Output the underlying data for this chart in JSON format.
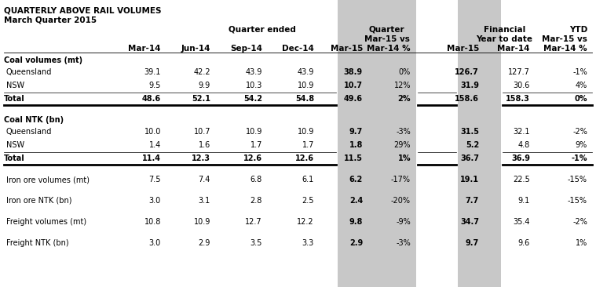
{
  "title1": "QUARTERLY ABOVE RAIL VOLUMES",
  "title2": "March Quarter 2015",
  "rows": [
    {
      "label": "Coal volumes (mt)",
      "values": [
        "",
        "",
        "",
        "",
        "",
        "",
        "",
        "",
        "",
        ""
      ],
      "type": "section"
    },
    {
      "label": "Queensland",
      "values": [
        "39.1",
        "42.2",
        "43.9",
        "43.9",
        "38.9",
        "0%",
        "",
        "126.7",
        "127.7",
        "-1%"
      ],
      "type": "data"
    },
    {
      "label": "NSW",
      "values": [
        "9.5",
        "9.9",
        "10.3",
        "10.9",
        "10.7",
        "12%",
        "",
        "31.9",
        "30.6",
        "4%"
      ],
      "type": "data"
    },
    {
      "label": "Total",
      "values": [
        "48.6",
        "52.1",
        "54.2",
        "54.8",
        "49.6",
        "2%",
        "",
        "158.6",
        "158.3",
        "0%"
      ],
      "type": "total"
    },
    {
      "label": "",
      "values": [
        "",
        "",
        "",
        "",
        "",
        "",
        "",
        "",
        "",
        ""
      ],
      "type": "spacer"
    },
    {
      "label": "Coal NTK (bn)",
      "values": [
        "",
        "",
        "",
        "",
        "",
        "",
        "",
        "",
        "",
        ""
      ],
      "type": "section"
    },
    {
      "label": "Queensland",
      "values": [
        "10.0",
        "10.7",
        "10.9",
        "10.9",
        "9.7",
        "-3%",
        "",
        "31.5",
        "32.1",
        "-2%"
      ],
      "type": "data"
    },
    {
      "label": "NSW",
      "values": [
        "1.4",
        "1.6",
        "1.7",
        "1.7",
        "1.8",
        "29%",
        "",
        "5.2",
        "4.8",
        "9%"
      ],
      "type": "data"
    },
    {
      "label": "Total",
      "values": [
        "11.4",
        "12.3",
        "12.6",
        "12.6",
        "11.5",
        "1%",
        "",
        "36.7",
        "36.9",
        "-1%"
      ],
      "type": "total"
    },
    {
      "label": "",
      "values": [
        "",
        "",
        "",
        "",
        "",
        "",
        "",
        "",
        "",
        ""
      ],
      "type": "spacer"
    },
    {
      "label": "Iron ore volumes (mt)",
      "values": [
        "7.5",
        "7.4",
        "6.8",
        "6.1",
        "6.2",
        "-17%",
        "",
        "19.1",
        "22.5",
        "-15%"
      ],
      "type": "data"
    },
    {
      "label": "",
      "values": [
        "",
        "",
        "",
        "",
        "",
        "",
        "",
        "",
        "",
        ""
      ],
      "type": "spacer"
    },
    {
      "label": "Iron ore NTK (bn)",
      "values": [
        "3.0",
        "3.1",
        "2.8",
        "2.5",
        "2.4",
        "-20%",
        "",
        "7.7",
        "9.1",
        "-15%"
      ],
      "type": "data"
    },
    {
      "label": "",
      "values": [
        "",
        "",
        "",
        "",
        "",
        "",
        "",
        "",
        "",
        ""
      ],
      "type": "spacer"
    },
    {
      "label": "Freight volumes (mt)",
      "values": [
        "10.8",
        "10.9",
        "12.7",
        "12.2",
        "9.8",
        "-9%",
        "",
        "34.7",
        "35.4",
        "-2%"
      ],
      "type": "data"
    },
    {
      "label": "",
      "values": [
        "",
        "",
        "",
        "",
        "",
        "",
        "",
        "",
        "",
        ""
      ],
      "type": "spacer"
    },
    {
      "label": "Freight NTK (bn)",
      "values": [
        "3.0",
        "2.9",
        "3.5",
        "3.3",
        "2.9",
        "-3%",
        "",
        "9.7",
        "9.6",
        "1%"
      ],
      "type": "data"
    }
  ],
  "shade_color": "#c8c8c8",
  "bg_color": "#ffffff",
  "text_color": "#000000",
  "font_size": 7.0,
  "header_font_size": 7.5
}
